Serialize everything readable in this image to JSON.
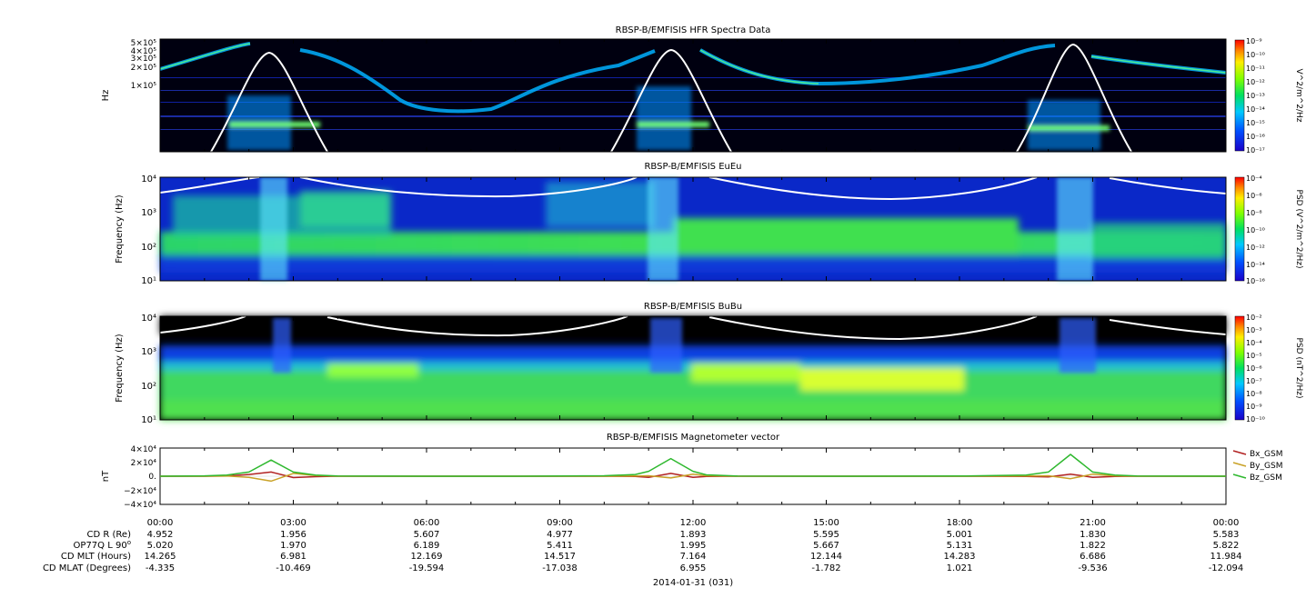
{
  "date_label": "2014-01-31 (031)",
  "panels": [
    {
      "title": "RBSP-B/EMFISIS  HFR Spectra Data",
      "ylabel": "Hz",
      "yticks": [
        "5×10⁵",
        "4×10⁵",
        "3×10⁵",
        "2×10⁵",
        "1×10⁵"
      ],
      "cbar_label": "V^2/m^2/Hz",
      "cbar_ticks": [
        "10⁻⁹",
        "10⁻¹⁰",
        "10⁻¹¹",
        "10⁻¹²",
        "10⁻¹³",
        "10⁻¹⁴",
        "10⁻¹⁵",
        "10⁻¹⁶",
        "10⁻¹⁷"
      ]
    },
    {
      "title": "RBSP-B/EMFISIS  EuEu",
      "ylabel": "Frequency (Hz)",
      "yticks": [
        "10⁴",
        "10³",
        "10²",
        "10¹"
      ],
      "cbar_label": "PSD (V^2/m^2/Hz)",
      "cbar_ticks": [
        "10⁻⁴",
        "10⁻⁶",
        "10⁻⁸",
        "10⁻¹⁰",
        "10⁻¹²",
        "10⁻¹⁴",
        "10⁻¹⁶"
      ]
    },
    {
      "title": "RBSP-B/EMFISIS  BuBu",
      "ylabel": "Frequency (Hz)",
      "yticks": [
        "10⁴",
        "10³",
        "10²",
        "10¹"
      ],
      "cbar_label": "PSD (nT^2/Hz)",
      "cbar_ticks": [
        "10⁻²",
        "10⁻³",
        "10⁻⁴",
        "10⁻⁵",
        "10⁻⁶",
        "10⁻⁷",
        "10⁻⁸",
        "10⁻⁹",
        "10⁻¹⁰"
      ]
    }
  ],
  "mag_panel": {
    "title": "RBSP-B/EMFISIS  Magnetometer vector",
    "ylabel": "nT",
    "yticks": [
      "4×10⁴",
      "2×10⁴",
      "0.",
      "−2×10⁴",
      "−4×10⁴"
    ]
  },
  "chart_data": {
    "type": "line",
    "title": "RBSP-B/EMFISIS  Magnetometer vector",
    "xlabel": "2014-01-31 (031)",
    "ylabel": "nT",
    "ylim": [
      -40000,
      40000
    ],
    "x_hours": [
      0,
      1,
      1.5,
      2,
      2.5,
      3,
      3.5,
      4,
      6,
      8,
      10,
      10.7,
      11,
      11.5,
      12,
      12.3,
      13,
      15,
      18,
      19.5,
      20,
      20.5,
      21,
      21.5,
      22,
      24
    ],
    "series": [
      {
        "name": "Bx_GSM",
        "color": "#b22222",
        "values": [
          0,
          0,
          300,
          2500,
          6000,
          -2000,
          -600,
          0,
          0,
          0,
          0,
          -300,
          -1500,
          4000,
          -1500,
          -400,
          0,
          0,
          0,
          -300,
          -1000,
          3000,
          -1500,
          -400,
          0,
          0
        ]
      },
      {
        "name": "By_GSM",
        "color": "#c9a227",
        "values": [
          0,
          0,
          200,
          -1500,
          -7000,
          4000,
          900,
          0,
          0,
          0,
          0,
          200,
          600,
          -2500,
          3000,
          600,
          0,
          0,
          0,
          200,
          700,
          -3500,
          3000,
          500,
          0,
          0
        ]
      },
      {
        "name": "Bz_GSM",
        "color": "#2eb82e",
        "values": [
          0,
          500,
          1500,
          6000,
          23000,
          6000,
          1500,
          300,
          0,
          0,
          600,
          2500,
          7000,
          25000,
          7000,
          2000,
          300,
          0,
          300,
          1500,
          6000,
          31000,
          6000,
          1500,
          300,
          0
        ]
      }
    ]
  },
  "legend": [
    "Bx_GSM",
    "By_GSM",
    "Bz_GSM"
  ],
  "colors": {
    "bx": "#b22222",
    "by": "#c9a227",
    "bz": "#2eb82e"
  },
  "xticks": [
    "00:00",
    "03:00",
    "06:00",
    "09:00",
    "12:00",
    "15:00",
    "18:00",
    "21:00",
    "00:00"
  ],
  "ephem": {
    "labels": [
      "CD R (Re)",
      "OP77Q L 90",
      "CD MLT (Hours)",
      "CD MLAT (Degrees)"
    ],
    "rows": [
      [
        "4.952",
        "1.956",
        "5.607",
        "4.977",
        "1.893",
        "5.595",
        "5.001",
        "1.830",
        "5.583"
      ],
      [
        "5.020",
        "1.970",
        "6.189",
        "5.411",
        "1.995",
        "5.667",
        "5.131",
        "1.822",
        "5.822"
      ],
      [
        "14.265",
        "6.981",
        "12.169",
        "14.517",
        "7.164",
        "12.144",
        "14.283",
        "6.686",
        "11.984"
      ],
      [
        "-4.335",
        "-10.469",
        "-19.594",
        "-17.038",
        "6.955",
        "-1.782",
        "1.021",
        "-9.536",
        "-12.094"
      ]
    ]
  }
}
